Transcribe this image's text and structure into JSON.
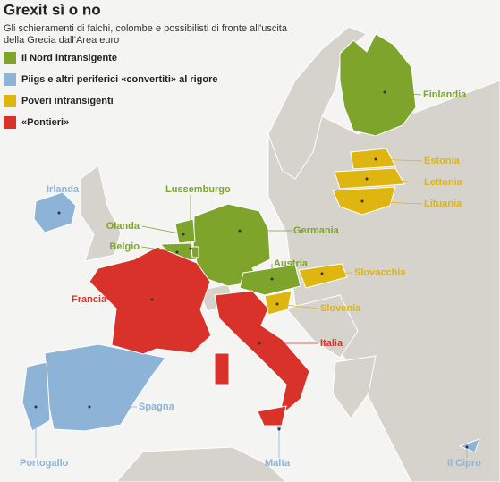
{
  "header": {
    "title": "Grexit sì o no",
    "subtitle": [
      "Gli schieramenti di falchi, colombe e possibilisti di fronte all'uscita",
      "della Grecia dall'Area euro"
    ]
  },
  "legend": {
    "items": [
      {
        "label": "Il Nord intransigente",
        "color": "#7ea42c",
        "countries": [
          "Finlandia",
          "Lussemburgo",
          "Olanda",
          "Belgio",
          "Germania",
          "Austria"
        ]
      },
      {
        "label": "Piigs e altri periferici «convertiti» al rigore",
        "color": "#8db3d6",
        "countries": [
          "Irlanda",
          "Spagna",
          "Portogallo",
          "Malta",
          "Il Cipro"
        ]
      },
      {
        "label": "Poveri intransigenti",
        "color": "#dfb510",
        "countries": [
          "Estonia",
          "Lettonia",
          "Lituania",
          "Slovacchia",
          "Slovenia"
        ]
      },
      {
        "label": "«Pontieri»",
        "color": "#d9322a",
        "countries": [
          "Francia",
          "Italia"
        ]
      }
    ]
  }
}
